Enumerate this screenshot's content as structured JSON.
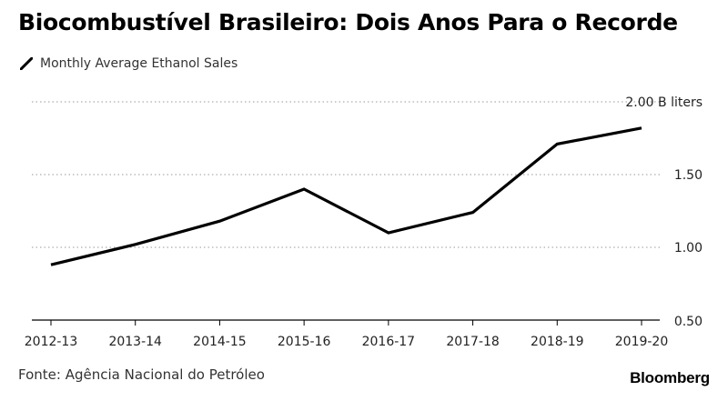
{
  "header": {
    "title": "Biocombustível Brasileiro: Dois Anos Para o Recorde"
  },
  "legend": {
    "label": "Monthly Average Ethanol Sales",
    "color": "#000000"
  },
  "footer": {
    "source": "Fonte: Agência Nacional do Petróleo",
    "brand": "Bloomberg"
  },
  "chart_data": {
    "type": "line",
    "title": "Biocombustível Brasileiro: Dois Anos Para o Recorde",
    "categories": [
      "2012-13",
      "2013-14",
      "2014-15",
      "2015-16",
      "2016-17",
      "2017-18",
      "2018-19",
      "2019-20"
    ],
    "series": [
      {
        "name": "Monthly Average Ethanol Sales",
        "values": [
          0.88,
          1.02,
          1.18,
          1.4,
          1.1,
          1.24,
          1.71,
          1.82
        ],
        "color": "#000000"
      }
    ],
    "ylim": [
      0.5,
      2.0
    ],
    "yticks": [
      0.5,
      1.0,
      1.5,
      2.0
    ],
    "ytick_labels": [
      "0.50",
      "1.00",
      "1.50",
      "2.00 B liters"
    ],
    "grid": "dotted horizontal",
    "y_axis_side": "right",
    "xlabel": "",
    "ylabel": ""
  }
}
